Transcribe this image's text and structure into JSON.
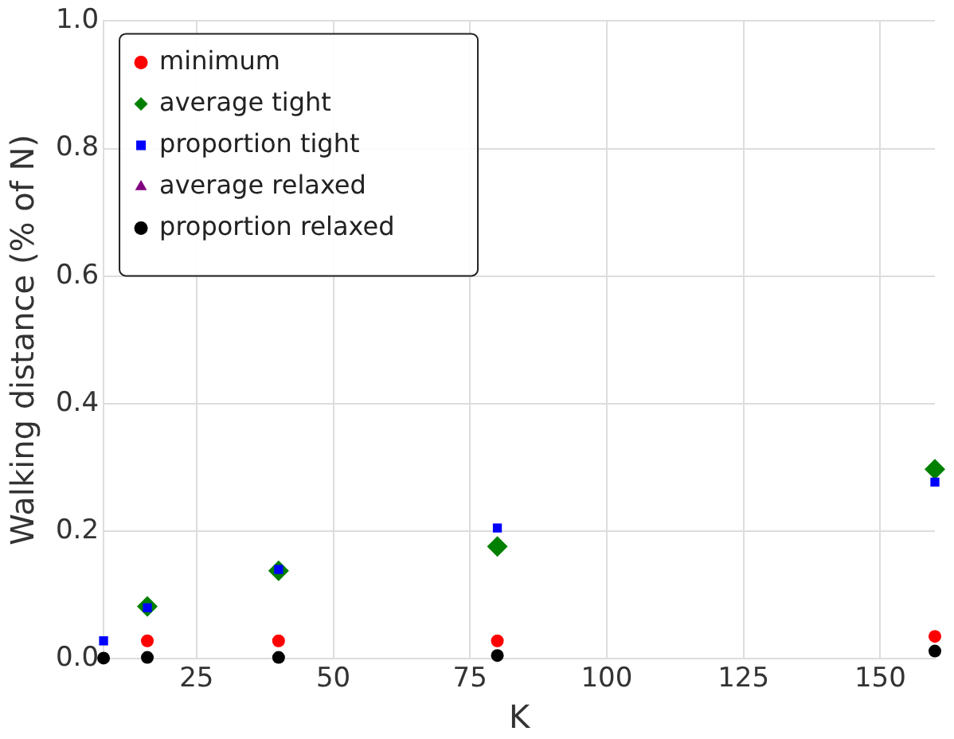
{
  "chart_data": {
    "type": "scatter",
    "xlabel": "K",
    "ylabel": "Walking distance (% of N)",
    "x": [
      8,
      16,
      40,
      80,
      160
    ],
    "series": [
      {
        "name": "minimum",
        "color": "#ff0000",
        "marker": "circle",
        "values": [
          null,
          0.028,
          0.028,
          0.028,
          0.035
        ]
      },
      {
        "name": "average tight",
        "color": "#008000",
        "marker": "diamond",
        "values": [
          null,
          0.082,
          0.138,
          0.176,
          0.297
        ]
      },
      {
        "name": "proportion tight",
        "color": "#0000ff",
        "marker": "square",
        "values": [
          0.028,
          0.08,
          0.14,
          0.205,
          0.277
        ]
      },
      {
        "name": "average relaxed",
        "color": "#800080",
        "marker": "triangle",
        "values": [
          null,
          null,
          null,
          null,
          null
        ]
      },
      {
        "name": "proportion relaxed",
        "color": "#000000",
        "marker": "circle",
        "values": [
          0.001,
          0.002,
          0.002,
          0.005,
          0.012
        ]
      }
    ],
    "xlim": [
      8,
      160
    ],
    "xticks": [
      25,
      50,
      75,
      100,
      125,
      150
    ],
    "ylim": [
      0,
      1
    ],
    "yticks": [
      {
        "value": 0,
        "label": "0.0"
      },
      0.2,
      0.4,
      0.6,
      0.8,
      {
        "value": 1,
        "label": "1.0"
      }
    ],
    "grid": true,
    "legend": "top left"
  }
}
